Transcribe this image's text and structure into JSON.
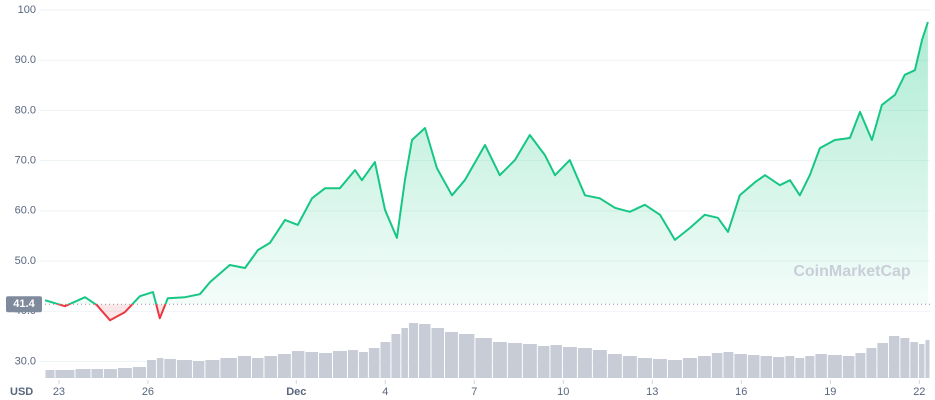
{
  "chart_data": {
    "type": "line",
    "axis_label": "USD",
    "watermark": "CoinMarketCap",
    "baseline": 41.4,
    "up_color": "#16c784",
    "down_color": "#ea3943",
    "volume_color": "#c7ccd6",
    "grid": true,
    "xlim": [
      -0.47,
      29.36
    ],
    "ylim": [
      26.3,
      100
    ],
    "volume_ylim": [
      0,
      100
    ],
    "yticks": [
      {
        "value": 30,
        "label": "30.0"
      },
      {
        "value": 40,
        "label": "40.0"
      },
      {
        "value": 50,
        "label": "50.0"
      },
      {
        "value": 60,
        "label": "60.0"
      },
      {
        "value": 70,
        "label": "70.0"
      },
      {
        "value": 80,
        "label": "80.0"
      },
      {
        "value": 90,
        "label": "90.0"
      },
      100
    ],
    "xticks": [
      {
        "value": 0,
        "label": "23"
      },
      {
        "value": 3,
        "label": "26"
      },
      {
        "value": 8,
        "label": "Dec"
      },
      {
        "value": 11,
        "label": "4"
      },
      {
        "value": 14,
        "label": "7"
      },
      {
        "value": 17,
        "label": "10"
      },
      {
        "value": 20,
        "label": "13"
      },
      {
        "value": 23,
        "label": "16"
      },
      {
        "value": 26,
        "label": "19"
      },
      {
        "value": 29,
        "label": "22"
      }
    ],
    "x": [
      -0.47,
      0.2,
      0.88,
      1.28,
      1.72,
      2.22,
      2.73,
      3.17,
      3.4,
      3.67,
      4.25,
      4.75,
      5.09,
      5.76,
      6.27,
      6.71,
      7.11,
      7.62,
      8.05,
      8.53,
      8.97,
      9.47,
      9.98,
      10.21,
      10.65,
      10.99,
      11.39,
      11.66,
      11.9,
      12.34,
      12.74,
      13.25,
      13.68,
      14.36,
      14.86,
      15.37,
      15.87,
      16.38,
      16.72,
      17.22,
      17.73,
      18.23,
      18.74,
      19.24,
      19.75,
      20.26,
      20.76,
      21.27,
      21.77,
      22.21,
      22.55,
      22.95,
      23.46,
      23.8,
      24.3,
      24.64,
      24.97,
      25.31,
      25.65,
      26.15,
      26.66,
      27.0,
      27.4,
      27.74,
      28.18,
      28.51,
      28.85,
      29.09,
      29.29
    ],
    "values": [
      42.2,
      41.0,
      42.8,
      41.2,
      38.2,
      39.8,
      43.0,
      43.8,
      38.6,
      42.6,
      42.8,
      43.4,
      45.8,
      49.2,
      48.6,
      52.2,
      53.6,
      58.2,
      57.2,
      62.5,
      64.5,
      64.5,
      68.1,
      66.1,
      69.7,
      60.2,
      54.6,
      66.1,
      74.1,
      76.5,
      68.5,
      63.1,
      66.1,
      73.1,
      67.1,
      70.1,
      75.1,
      71.1,
      67.1,
      70.1,
      63.1,
      62.5,
      60.6,
      59.8,
      61.2,
      59.2,
      54.2,
      56.6,
      59.2,
      58.6,
      55.8,
      63.1,
      65.7,
      67.1,
      65.1,
      66.1,
      63.1,
      67.1,
      72.5,
      74.1,
      74.5,
      79.7,
      74.1,
      81.1,
      83.1,
      87.1,
      88.0,
      94.0,
      97.6
    ],
    "volume": [
      8,
      8,
      9,
      9,
      9,
      10,
      11,
      18,
      20,
      19,
      18,
      17,
      18,
      20,
      22,
      20,
      22,
      24,
      27,
      26,
      25,
      27,
      28,
      26,
      30,
      36,
      44,
      50,
      55,
      54,
      50,
      46,
      44,
      40,
      36,
      35,
      34,
      32,
      33,
      31,
      30,
      28,
      24,
      22,
      20,
      19,
      18,
      20,
      22,
      25,
      26,
      24,
      23,
      22,
      21,
      22,
      20,
      22,
      24,
      23,
      22,
      25,
      30,
      35,
      42,
      40,
      36,
      34,
      38
    ]
  }
}
